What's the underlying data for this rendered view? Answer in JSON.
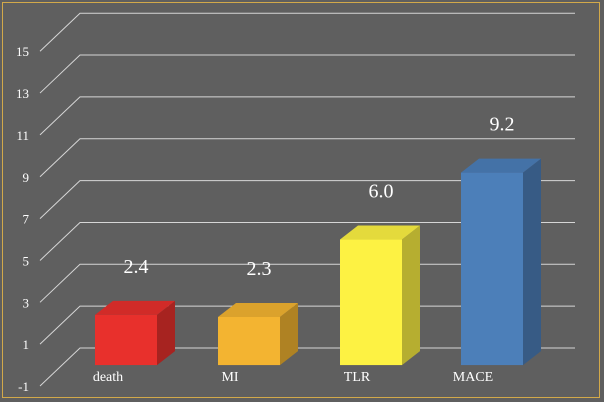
{
  "chart_data": {
    "type": "bar",
    "style": "3d",
    "categories": [
      "death",
      "MI",
      "TLR",
      "MACE"
    ],
    "values": [
      2.4,
      2.3,
      6.0,
      9.2
    ],
    "value_labels": [
      "2.4",
      "2.3",
      "6.0",
      "9.2"
    ],
    "colors": [
      "#e8302c",
      "#f3b431",
      "#fdf243",
      "#4c7fb9"
    ],
    "y_ticks": [
      -1,
      1,
      3,
      5,
      7,
      9,
      11,
      13,
      15
    ],
    "ylim": [
      -1,
      16.3
    ],
    "bar_base": 0,
    "grid": true,
    "legend": "none",
    "background": "#5f5f5f",
    "border_color": "#d2a94a"
  }
}
